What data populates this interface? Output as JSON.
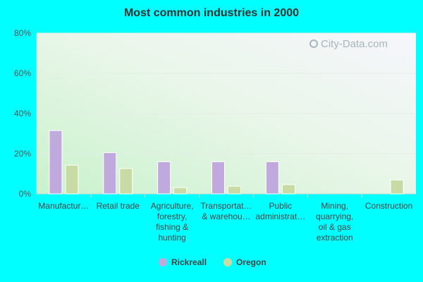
{
  "chart_data": {
    "type": "bar",
    "title": "Most common industries in 2000",
    "categories": [
      [
        "Manufactur…"
      ],
      [
        "Retail trade"
      ],
      [
        "Agriculture,",
        "forestry,",
        "fishing &",
        "hunting"
      ],
      [
        "Transportat…",
        "& warehou…"
      ],
      [
        "Public",
        "administrat…"
      ],
      [
        "Mining,",
        "quarrying,",
        "oil & gas",
        "extraction"
      ],
      [
        "Construction"
      ]
    ],
    "series": [
      {
        "name": "Rickreall",
        "color": "#c0a9dd",
        "values": [
          31.5,
          20.5,
          16.0,
          16.0,
          16.0,
          0,
          0
        ]
      },
      {
        "name": "Oregon",
        "color": "#c8dba5",
        "values": [
          14.3,
          12.6,
          3.1,
          3.8,
          4.6,
          0.2,
          6.9
        ]
      }
    ],
    "ylim": [
      0,
      80
    ],
    "yticks": [
      "0%",
      "20%",
      "40%",
      "60%",
      "80%"
    ],
    "grid": true,
    "legend": "bottom"
  },
  "watermark": "City-Data.com"
}
